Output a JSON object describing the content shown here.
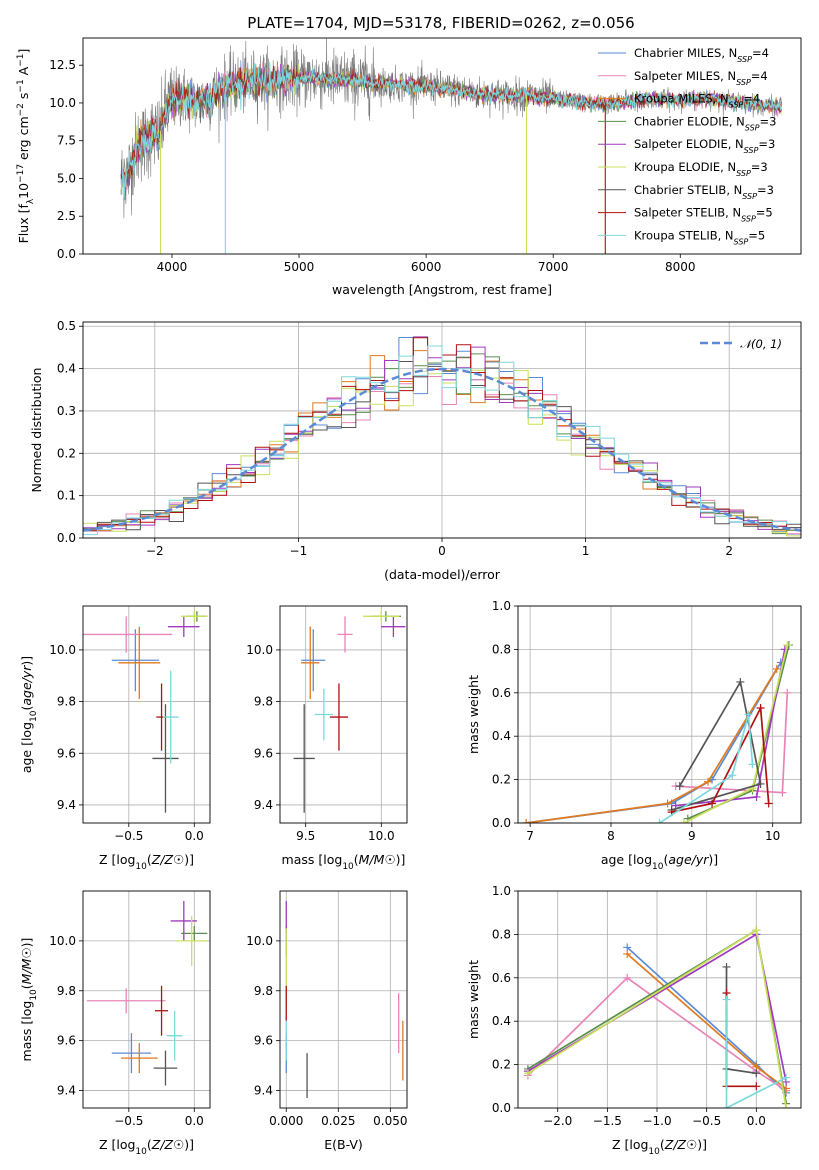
{
  "figure": {
    "title": "PLATE=1704, MJD=53178, FIBERID=0262, z=0.056"
  },
  "palette": [
    "#5b8bd6",
    "#e884b8",
    "#e07a1f",
    "#5a8f4e",
    "#a03ac0",
    "#c9e05a",
    "#555555",
    "#b01010",
    "#7dd8dd"
  ],
  "chart_data": [
    {
      "id": "spectrum",
      "type": "line",
      "xlabel": "wavelength [Angstrom, rest frame]",
      "ylabel": "Flux [f_λ10^-17 erg cm^-2 s^-1 A^-1]",
      "xlim": [
        3300,
        8950
      ],
      "ylim": [
        0,
        14.3
      ],
      "xticks": [
        4000,
        5000,
        6000,
        7000,
        8000
      ],
      "yticks": [
        0.0,
        2.5,
        5.0,
        7.5,
        10.0,
        12.5
      ],
      "grid": false,
      "legend_position": "top-right",
      "legend": [
        {
          "label": "Chabrier MILES, N",
          "sub": "SSP",
          "eq": "=4"
        },
        {
          "label": "Salpeter MILES, N",
          "sub": "SSP",
          "eq": "=4"
        },
        {
          "label": "Kroupa MILES, N",
          "sub": "SSP",
          "eq": "=4"
        },
        {
          "label": "Chabrier ELODIE, N",
          "sub": "SSP",
          "eq": "=3"
        },
        {
          "label": "Salpeter ELODIE, N",
          "sub": "SSP",
          "eq": "=3"
        },
        {
          "label": "Kroupa ELODIE, N",
          "sub": "SSP",
          "eq": "=3"
        },
        {
          "label": "Chabrier STELIB, N",
          "sub": "SSP",
          "eq": "=3"
        },
        {
          "label": "Salpeter STELIB, N",
          "sub": "SSP",
          "eq": "=5"
        },
        {
          "label": "Kroupa STELIB, N",
          "sub": "SSP",
          "eq": "=5"
        }
      ],
      "continuum": {
        "x": [
          3600,
          3650,
          3700,
          3750,
          3800,
          3850,
          3900,
          3950,
          4000,
          4100,
          4200,
          4300,
          4400,
          4500,
          4600,
          4700,
          4800,
          4900,
          5000,
          5100,
          5200,
          5400,
          5600,
          5800,
          6000,
          6200,
          6400,
          6600,
          6800,
          7000,
          7200,
          7400,
          7600,
          7800,
          8000,
          8200,
          8400,
          8600,
          8800
        ],
        "y": [
          5.0,
          5.2,
          6.5,
          7.4,
          7.5,
          8.0,
          7.8,
          9.5,
          10.2,
          10.4,
          10.0,
          10.3,
          11.0,
          11.2,
          11.4,
          11.5,
          11.5,
          11.6,
          11.6,
          11.7,
          11.6,
          11.5,
          11.3,
          11.2,
          11.1,
          10.9,
          10.6,
          10.5,
          10.5,
          10.3,
          10.1,
          9.9,
          10.1,
          10.3,
          10.2,
          10.3,
          10.1,
          9.9,
          9.7
        ]
      },
      "dips": [
        {
          "x": 3910,
          "y": 0.0
        },
        {
          "x": 4420,
          "y": 0.0
        },
        {
          "x": 6790,
          "y": 0.0
        },
        {
          "x": 7410,
          "y": 0.0
        }
      ]
    },
    {
      "id": "residuals",
      "type": "histogram",
      "xlabel": "(data-model)/error",
      "ylabel": "Normed distribution",
      "xlim": [
        -2.5,
        2.5
      ],
      "ylim": [
        0,
        0.51
      ],
      "xticks": [
        -2,
        -1,
        0,
        1,
        2
      ],
      "yticks": [
        0.0,
        0.1,
        0.2,
        0.3,
        0.4,
        0.5
      ],
      "grid": true,
      "legend_position": "top-right",
      "legend": [
        {
          "label": "𝒩(0, 1)"
        }
      ],
      "bin_width": 0.1
    },
    {
      "id": "age-vs-Z",
      "type": "scatter",
      "xlabel": "Z [log10(Z/Z☉)]",
      "ylabel": "age  [log10(age/yr)]",
      "xlim": [
        -0.85,
        0.12
      ],
      "ylim": [
        9.33,
        10.17
      ],
      "xticks": [
        -0.5,
        0.0
      ],
      "yticks": [
        9.4,
        9.6,
        9.8,
        10.0
      ],
      "grid": true,
      "points": [
        {
          "x": -0.45,
          "y": 9.96,
          "xerr": 0.18,
          "yerr": 0.12
        },
        {
          "x": -0.52,
          "y": 10.06,
          "xerr": 0.35,
          "yerr": 0.07
        },
        {
          "x": -0.42,
          "y": 9.95,
          "xerr": 0.16,
          "yerr": 0.14
        },
        {
          "x": 0.02,
          "y": 10.13,
          "xerr": 0.08,
          "yerr": 0.02
        },
        {
          "x": -0.08,
          "y": 10.09,
          "xerr": 0.12,
          "yerr": 0.04
        },
        {
          "x": 0.0,
          "y": 10.13,
          "xerr": 0.1,
          "yerr": 0.02
        },
        {
          "x": -0.22,
          "y": 9.58,
          "xerr": 0.1,
          "yerr": 0.21
        },
        {
          "x": -0.25,
          "y": 9.74,
          "xerr": 0.04,
          "yerr": 0.13
        },
        {
          "x": -0.18,
          "y": 9.74,
          "xerr": 0.06,
          "yerr": 0.18
        }
      ]
    },
    {
      "id": "age-vs-mass",
      "type": "scatter",
      "xlabel": "mass [log10(M/M☉)]",
      "ylabel": "",
      "xlim": [
        9.33,
        10.17
      ],
      "ylim": [
        9.33,
        10.17
      ],
      "xticks": [
        9.5,
        10.0
      ],
      "yticks": [
        9.4,
        9.6,
        9.8,
        10.0
      ],
      "grid": true,
      "points": [
        {
          "x": 9.55,
          "y": 9.96,
          "xerr": 0.08,
          "yerr": 0.12
        },
        {
          "x": 9.76,
          "y": 10.06,
          "xerr": 0.05,
          "yerr": 0.07
        },
        {
          "x": 9.53,
          "y": 9.95,
          "xerr": 0.06,
          "yerr": 0.14
        },
        {
          "x": 10.03,
          "y": 10.13,
          "xerr": 0.1,
          "yerr": 0.02
        },
        {
          "x": 10.08,
          "y": 10.09,
          "xerr": 0.08,
          "yerr": 0.04
        },
        {
          "x": 10.0,
          "y": 10.13,
          "xerr": 0.12,
          "yerr": 0.02
        },
        {
          "x": 9.49,
          "y": 9.58,
          "xerr": 0.07,
          "yerr": 0.21
        },
        {
          "x": 9.72,
          "y": 9.74,
          "xerr": 0.06,
          "yerr": 0.13
        },
        {
          "x": 9.62,
          "y": 9.75,
          "xerr": 0.06,
          "yerr": 0.1
        }
      ]
    },
    {
      "id": "massweight-vs-age",
      "type": "line",
      "xlabel": "age  [log10(age/yr)]",
      "ylabel": "mass weight",
      "xlim": [
        6.85,
        10.35
      ],
      "ylim": [
        0,
        1.0
      ],
      "xticks": [
        7,
        8,
        9,
        10
      ],
      "yticks": [
        0.0,
        0.2,
        0.4,
        0.6,
        0.8,
        1.0
      ],
      "grid": true,
      "series": [
        {
          "x": [
            6.95,
            8.75,
            9.25,
            10.1
          ],
          "y": [
            0.0,
            0.09,
            0.2,
            0.74
          ]
        },
        {
          "x": [
            8.8,
            10.12,
            10.18
          ],
          "y": [
            0.17,
            0.14,
            0.6
          ]
        },
        {
          "x": [
            6.95,
            8.7,
            9.2,
            10.05
          ],
          "y": [
            0.0,
            0.09,
            0.19,
            0.71
          ]
        },
        {
          "x": [
            8.95,
            9.75,
            10.2
          ],
          "y": [
            0.02,
            0.15,
            0.82
          ]
        },
        {
          "x": [
            8.8,
            9.8,
            10.15
          ],
          "y": [
            0.08,
            0.12,
            0.8
          ]
        },
        {
          "x": [
            8.9,
            9.75,
            10.18
          ],
          "y": [
            0.0,
            0.16,
            0.82
          ]
        },
        {
          "x": [
            8.85,
            9.6,
            9.85,
            8.75
          ],
          "y": [
            0.17,
            0.65,
            0.18,
            0.06
          ]
        },
        {
          "x": [
            8.75,
            9.25,
            9.85,
            9.95
          ],
          "y": [
            0.05,
            0.09,
            0.53,
            0.09
          ]
        },
        {
          "x": [
            8.6,
            9.5,
            9.7,
            9.75
          ],
          "y": [
            0.0,
            0.22,
            0.5,
            0.27
          ]
        }
      ]
    },
    {
      "id": "mass-vs-Z",
      "type": "scatter",
      "xlabel": "Z [log10(Z/Z☉)]",
      "ylabel": "mass [log10(M/M☉)]",
      "xlim": [
        -0.85,
        0.12
      ],
      "ylim": [
        9.33,
        10.2
      ],
      "xticks": [
        -0.5,
        0.0
      ],
      "yticks": [
        9.4,
        9.6,
        9.8,
        10.0
      ],
      "grid": true,
      "points": [
        {
          "x": -0.48,
          "y": 9.55,
          "xerr": 0.15,
          "yerr": 0.08
        },
        {
          "x": -0.52,
          "y": 9.76,
          "xerr": 0.3,
          "yerr": 0.05
        },
        {
          "x": -0.42,
          "y": 9.53,
          "xerr": 0.14,
          "yerr": 0.06
        },
        {
          "x": 0.0,
          "y": 10.03,
          "xerr": 0.1,
          "yerr": 0.03
        },
        {
          "x": -0.08,
          "y": 10.08,
          "xerr": 0.1,
          "yerr": 0.08
        },
        {
          "x": -0.02,
          "y": 10.0,
          "xerr": 0.12,
          "yerr": 0.1
        },
        {
          "x": -0.22,
          "y": 9.49,
          "xerr": 0.09,
          "yerr": 0.07
        },
        {
          "x": -0.25,
          "y": 9.72,
          "xerr": 0.05,
          "yerr": 0.1
        },
        {
          "x": -0.15,
          "y": 9.62,
          "xerr": 0.06,
          "yerr": 0.1
        }
      ]
    },
    {
      "id": "mass-vs-ebv",
      "type": "scatter",
      "xlabel": "E(B-V)",
      "ylabel": "",
      "xlim": [
        -0.003,
        0.058
      ],
      "ylim": [
        9.33,
        10.2
      ],
      "xticks": [
        0.0,
        0.025,
        0.05
      ],
      "yticks": [
        9.4,
        9.6,
        9.8,
        10.0
      ],
      "grid": true,
      "points": [
        {
          "x": 0.0,
          "y": 9.55,
          "xerr": 0.0,
          "yerr": 0.08
        },
        {
          "x": 0.054,
          "y": 9.67,
          "xerr": 0.0,
          "yerr": 0.12
        },
        {
          "x": 0.056,
          "y": 9.56,
          "xerr": 0.0,
          "yerr": 0.12
        },
        {
          "x": 0.0,
          "y": 10.0,
          "xerr": 0.0,
          "yerr": 0.06
        },
        {
          "x": 0.0,
          "y": 10.08,
          "xerr": 0.0,
          "yerr": 0.08
        },
        {
          "x": 0.0,
          "y": 9.9,
          "xerr": 0.0,
          "yerr": 0.15
        },
        {
          "x": 0.01,
          "y": 9.46,
          "xerr": 0.0,
          "yerr": 0.09
        },
        {
          "x": 0.0,
          "y": 9.75,
          "xerr": 0.0,
          "yerr": 0.07
        },
        {
          "x": 0.0,
          "y": 9.6,
          "xerr": 0.0,
          "yerr": 0.08
        }
      ]
    },
    {
      "id": "massweight-vs-Z",
      "type": "line",
      "xlabel": "Z [log10(Z/Z☉)]",
      "ylabel": "mass weight",
      "xlim": [
        -2.4,
        0.45
      ],
      "ylim": [
        0,
        1.0
      ],
      "xticks": [
        -2.0,
        -1.5,
        -1.0,
        -0.5,
        0.0
      ],
      "yticks": [
        0.0,
        0.2,
        0.4,
        0.6,
        0.8,
        1.0
      ],
      "grid": true,
      "series": [
        {
          "x": [
            -1.3,
            0.0,
            0.3
          ],
          "y": [
            0.74,
            0.2,
            0.07
          ]
        },
        {
          "x": [
            -2.3,
            -1.3,
            0.0,
            0.3
          ],
          "y": [
            0.15,
            0.6,
            0.17,
            0.08
          ]
        },
        {
          "x": [
            -1.3,
            0.0,
            0.3
          ],
          "y": [
            0.71,
            0.19,
            0.09
          ]
        },
        {
          "x": [
            -2.3,
            0.0,
            0.3
          ],
          "y": [
            0.18,
            0.82,
            0.02
          ]
        },
        {
          "x": [
            -2.3,
            0.0,
            0.3
          ],
          "y": [
            0.17,
            0.8,
            0.12
          ]
        },
        {
          "x": [
            -2.3,
            0.0,
            0.3
          ],
          "y": [
            0.16,
            0.82,
            0.0
          ]
        },
        {
          "x": [
            -0.3,
            -0.3,
            0.0
          ],
          "y": [
            0.65,
            0.18,
            0.16
          ]
        },
        {
          "x": [
            -0.3,
            -0.3,
            0.0
          ],
          "y": [
            0.53,
            0.1,
            0.1
          ]
        },
        {
          "x": [
            -0.3,
            -0.3,
            0.3
          ],
          "y": [
            0.5,
            0.0,
            0.14
          ]
        }
      ]
    }
  ]
}
